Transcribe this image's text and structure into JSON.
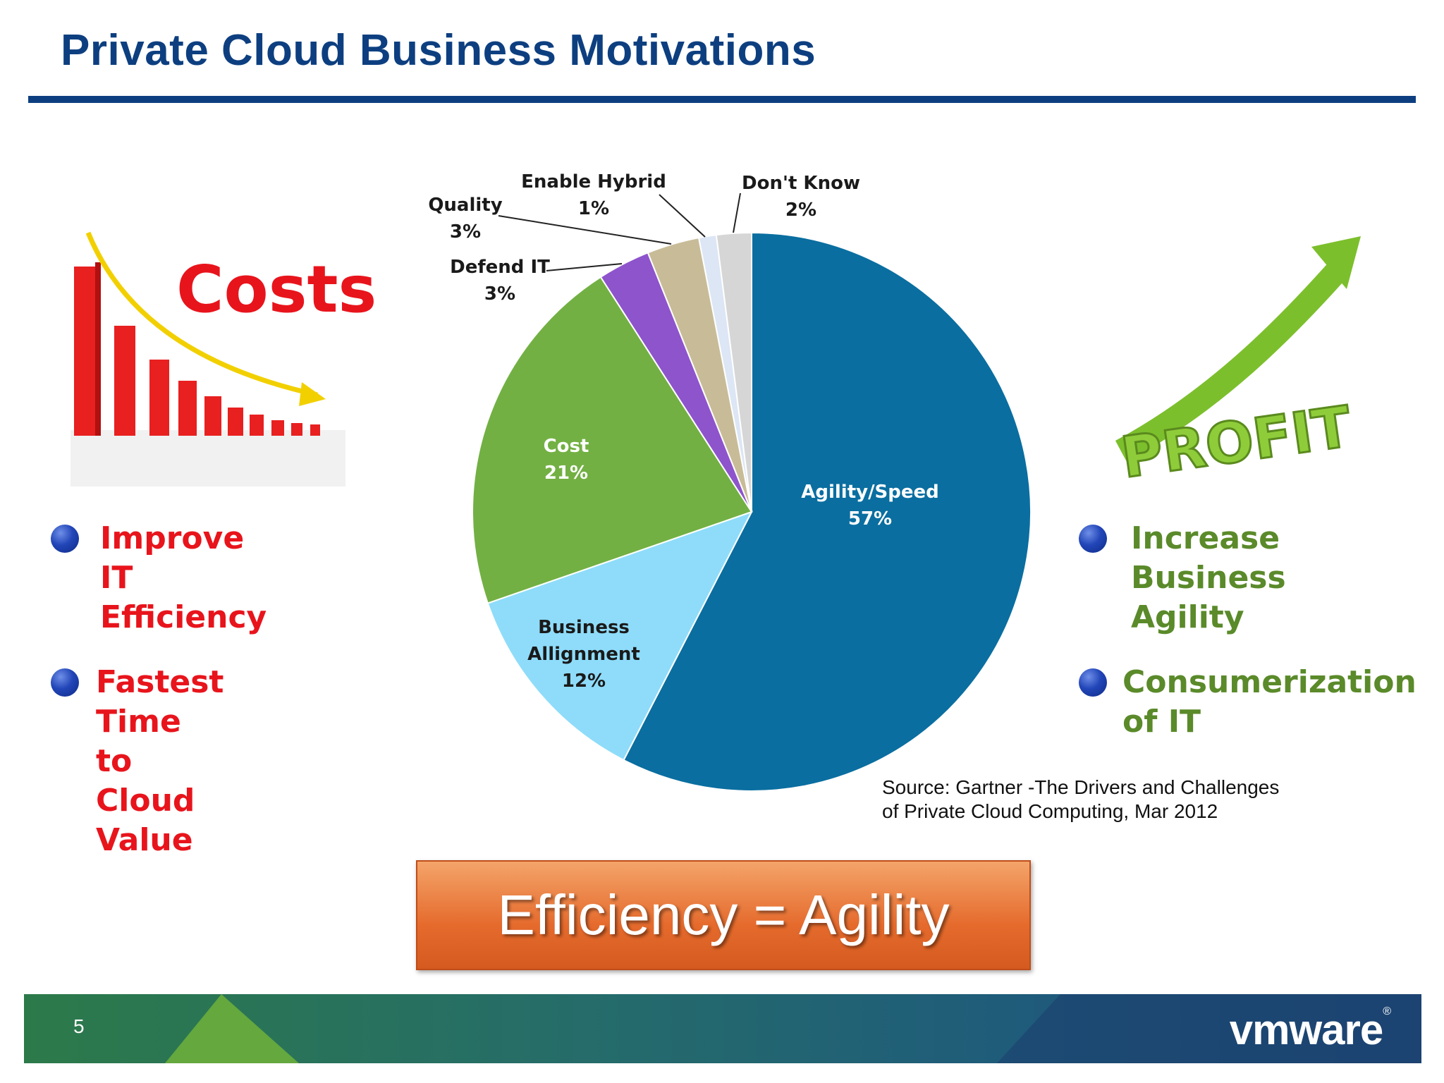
{
  "slide": {
    "title": "Private Cloud Business Motivations",
    "page_number": "5",
    "logo_text": "vmware"
  },
  "left_image": {
    "caption": "Costs"
  },
  "right_image": {
    "caption": "PROFIT"
  },
  "left_bullets": [
    {
      "text": "Improve\nIT Efficiency"
    },
    {
      "text": "Fastest Time\nto Cloud Value"
    }
  ],
  "right_bullets": [
    {
      "text": "Increase\nBusiness Agility"
    },
    {
      "text": "Consumerization\nof IT"
    }
  ],
  "source": "Source: Gartner -The Drivers and Challenges\nof Private Cloud Computing, Mar 2012",
  "banner": "Efficiency =  Agility",
  "colors": {
    "title": "#0d3f80",
    "red_text": "#e8141c",
    "green_text": "#5a8a2a"
  },
  "chart_data": {
    "type": "pie",
    "title": "",
    "slices": [
      {
        "label": "Agility/Speed",
        "value": 57,
        "display": "57%",
        "color": "#0a6ea0"
      },
      {
        "label": "Business Allignment",
        "value": 12,
        "display": "12%",
        "color": "#8edcfa"
      },
      {
        "label": "Cost",
        "value": 21,
        "display": "21%",
        "color": "#72b043"
      },
      {
        "label": "Defend IT",
        "value": 3,
        "display": "3%",
        "color": "#8e54cc"
      },
      {
        "label": "Quality",
        "value": 3,
        "display": "3%",
        "color": "#c8bc98"
      },
      {
        "label": "Enable Hybrid",
        "value": 1,
        "display": "1%",
        "color": "#dce6f5"
      },
      {
        "label": "Don't Know",
        "value": 2,
        "display": "2%",
        "color": "#d6d6d6"
      }
    ]
  }
}
